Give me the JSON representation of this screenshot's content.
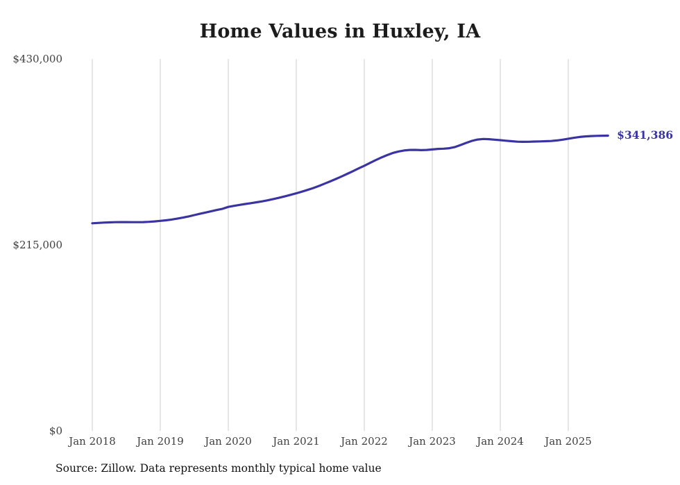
{
  "chart": {
    "title": "Home Values in Huxley, IA",
    "source": "Source: Zillow. Data represents monthly typical home value",
    "end_label": "$341,386",
    "line_color": "#3a34a3",
    "grid_color": "#cccccc",
    "text_color": "#3f3f3f",
    "title_color": "#1c1c1c"
  },
  "chart_data": {
    "type": "line",
    "title": "Home Values in Huxley, IA",
    "xlabel": "",
    "ylabel": "",
    "ylim": [
      0,
      430000
    ],
    "grid": "vertical-only",
    "legend": "none",
    "y_ticks": [
      {
        "value": 0,
        "label": "$0"
      },
      {
        "value": 215000,
        "label": "$215,000"
      },
      {
        "value": 430000,
        "label": "$430,000"
      }
    ],
    "x_ticks": [
      {
        "month_index": 0,
        "label": "Jan 2018"
      },
      {
        "month_index": 12,
        "label": "Jan 2019"
      },
      {
        "month_index": 24,
        "label": "Jan 2020"
      },
      {
        "month_index": 36,
        "label": "Jan 2021"
      },
      {
        "month_index": 48,
        "label": "Jan 2022"
      },
      {
        "month_index": 60,
        "label": "Jan 2023"
      },
      {
        "month_index": 72,
        "label": "Jan 2024"
      },
      {
        "month_index": 84,
        "label": "Jan 2025"
      }
    ],
    "series": [
      {
        "name": "Typical home value",
        "start": "Jan 2018",
        "end": "Aug 2025",
        "interval": "monthly",
        "values": [
          240000,
          240400,
          240800,
          241100,
          241300,
          241400,
          241400,
          241300,
          241300,
          241400,
          241700,
          242200,
          242800,
          243500,
          244400,
          245400,
          246600,
          248000,
          249500,
          251000,
          252500,
          254000,
          255400,
          256800,
          259000,
          260200,
          261300,
          262300,
          263300,
          264300,
          265400,
          266700,
          268100,
          269600,
          271200,
          272900,
          274700,
          276600,
          278600,
          280800,
          283200,
          285800,
          288500,
          291300,
          294200,
          297200,
          300300,
          303500,
          306500,
          309800,
          313000,
          316000,
          318800,
          321200,
          323000,
          324200,
          324800,
          324900,
          324600,
          324800,
          325400,
          326000,
          326300,
          326800,
          328200,
          330500,
          333000,
          335300,
          336900,
          337500,
          337300,
          336700,
          336100,
          335500,
          334900,
          334400,
          334200,
          334300,
          334500,
          334700,
          334900,
          335200,
          335800,
          336700,
          337800,
          338900,
          339800,
          340500,
          340900,
          341100,
          341250,
          341386
        ]
      }
    ],
    "end_value": 341386
  }
}
